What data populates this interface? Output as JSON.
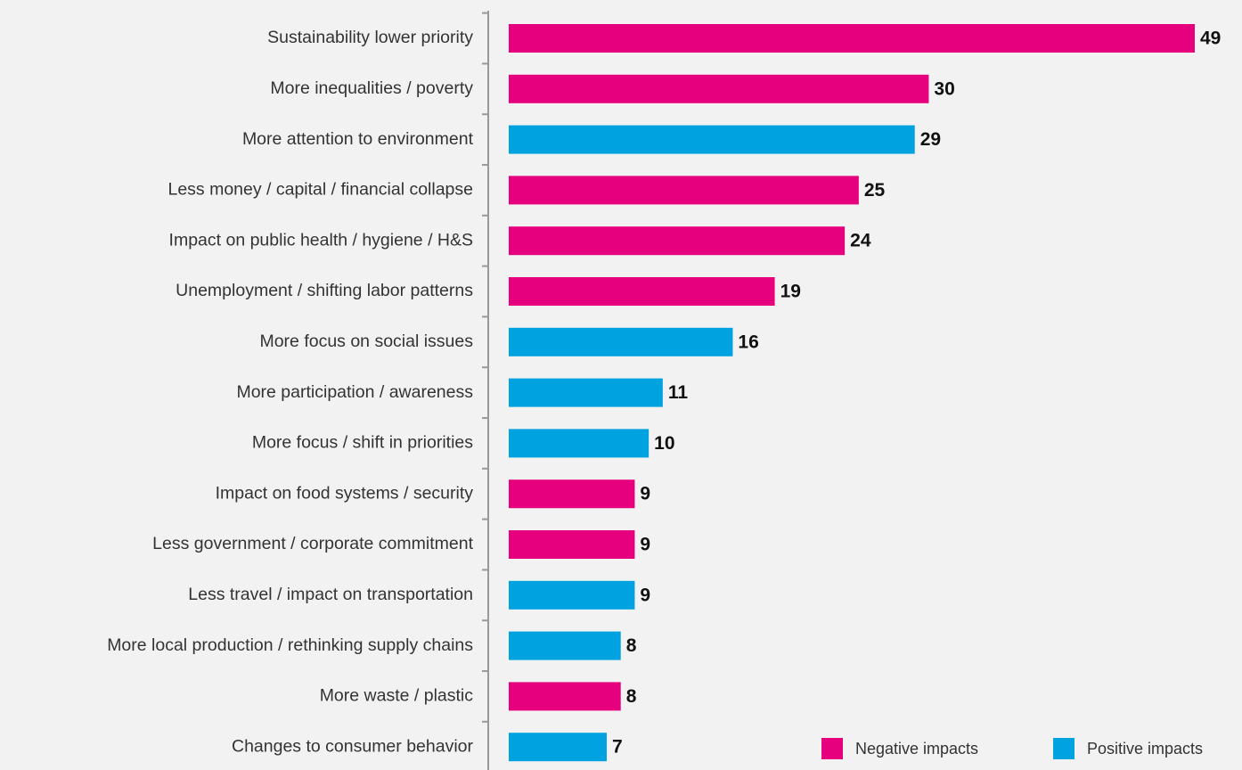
{
  "chart_data": {
    "type": "bar",
    "orientation": "horizontal",
    "categories": [
      "Sustainability lower priority",
      "More inequalities / poverty",
      "More attention to environment",
      "Less money / capital / financial collapse",
      "Impact on public health / hygiene / H&S",
      "Unemployment / shifting labor patterns",
      "More focus on social issues",
      "More participation / awareness",
      "More focus / shift in priorities",
      "Impact on food systems / security",
      "Less government / corporate commitment",
      "Less travel / impact on transportation",
      "More local production / rethinking supply chains",
      "More waste / plastic",
      "Changes to consumer behavior"
    ],
    "series": [
      {
        "name": "Negative impacts",
        "color": "#e6007e",
        "values": [
          49,
          30,
          null,
          25,
          24,
          19,
          null,
          null,
          null,
          9,
          9,
          null,
          null,
          8,
          null
        ]
      },
      {
        "name": "Positive impacts",
        "color": "#00a3e0",
        "values": [
          null,
          null,
          29,
          null,
          null,
          null,
          16,
          11,
          10,
          null,
          null,
          9,
          8,
          null,
          7
        ]
      }
    ],
    "legend": "bottom-right"
  }
}
